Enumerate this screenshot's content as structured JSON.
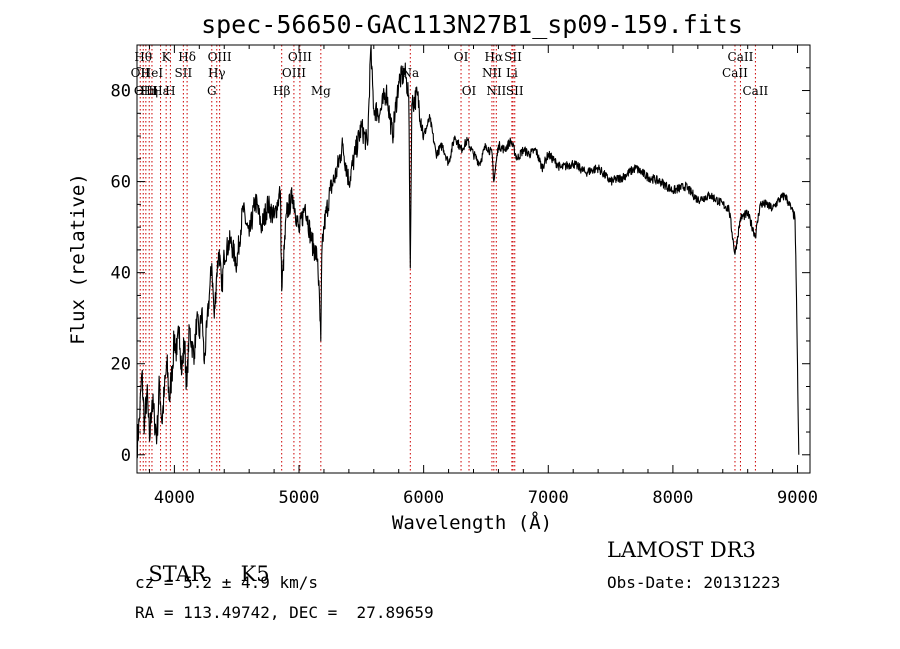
{
  "chart_data": {
    "type": "line",
    "title": "spec-56650-GAC113N27B1_sp09-159.fits",
    "xlabel": "Wavelength (Å)",
    "ylabel": "Flux (relative)",
    "xlim": [
      3700,
      9100
    ],
    "ylim": [
      -4,
      90
    ],
    "xticks": [
      4000,
      5000,
      6000,
      7000,
      8000,
      9000
    ],
    "yticks": [
      0,
      20,
      40,
      60,
      80
    ],
    "series": [
      {
        "name": "spectrum",
        "x": [
          3700,
          3720,
          3740,
          3760,
          3780,
          3800,
          3820,
          3840,
          3860,
          3880,
          3900,
          3920,
          3940,
          3960,
          3980,
          4000,
          4020,
          4040,
          4060,
          4080,
          4100,
          4120,
          4140,
          4160,
          4180,
          4200,
          4220,
          4240,
          4260,
          4280,
          4300,
          4320,
          4340,
          4360,
          4380,
          4400,
          4450,
          4500,
          4550,
          4600,
          4650,
          4700,
          4750,
          4800,
          4850,
          4861,
          4900,
          4950,
          5000,
          5050,
          5100,
          5150,
          5175,
          5183,
          5200,
          5250,
          5300,
          5350,
          5400,
          5450,
          5500,
          5550,
          5575,
          5600,
          5650,
          5700,
          5750,
          5800,
          5850,
          5880,
          5893,
          5905,
          5950,
          6000,
          6050,
          6100,
          6150,
          6200,
          6250,
          6300,
          6350,
          6400,
          6450,
          6500,
          6550,
          6563,
          6600,
          6650,
          6700,
          6750,
          6800,
          6850,
          6900,
          6950,
          7000,
          7100,
          7200,
          7300,
          7400,
          7500,
          7600,
          7700,
          7800,
          7900,
          8000,
          8100,
          8200,
          8300,
          8400,
          8450,
          8498,
          8542,
          8600,
          8662,
          8700,
          8750,
          8800,
          8850,
          8900,
          8950,
          8980,
          9000,
          9005,
          9010
        ],
        "y": [
          2,
          8,
          18,
          6,
          14,
          3,
          12,
          8,
          4,
          16,
          7,
          14,
          20,
          12,
          18,
          26,
          22,
          28,
          18,
          25,
          15,
          28,
          24,
          22,
          30,
          26,
          32,
          20,
          28,
          35,
          42,
          30,
          40,
          45,
          36,
          44,
          47,
          42,
          54,
          48,
          56,
          50,
          55,
          52,
          58,
          36,
          53,
          57,
          49,
          55,
          47,
          43,
          25,
          44,
          50,
          58,
          62,
          68,
          60,
          66,
          72,
          68,
          89,
          76,
          75,
          80,
          70,
          82,
          84,
          79,
          41,
          77,
          79,
          70,
          74,
          66,
          68,
          64,
          70,
          67,
          69,
          66,
          64,
          68,
          66,
          60,
          68,
          67,
          69,
          65,
          67,
          66,
          67,
          63,
          66,
          63,
          64,
          62,
          63,
          60,
          61,
          63,
          61,
          60,
          58,
          59,
          56,
          57,
          55,
          54,
          44,
          52,
          53,
          48,
          55,
          55,
          54,
          56,
          57,
          54,
          52,
          20,
          8,
          0
        ],
        "color": "#000000"
      }
    ],
    "annotations": {
      "line_color": "#cc0000",
      "lines": [
        {
          "wavelength": 3726,
          "label": "OII",
          "row": 2
        },
        {
          "wavelength": 3750,
          "label": "Hθ",
          "row": 1
        },
        {
          "wavelength": 3771,
          "label": "OIII",
          "row": 3
        },
        {
          "wavelength": 3798,
          "label": "Hη",
          "row": 3
        },
        {
          "wavelength": 3820,
          "label": "HeI",
          "row": 2
        },
        {
          "wavelength": 3889,
          "label": "Hε",
          "row": 3
        },
        {
          "wavelength": 3934,
          "label": "K",
          "row": 1
        },
        {
          "wavelength": 3968,
          "label": "H",
          "row": 3
        },
        {
          "wavelength": 4072,
          "label": "SII",
          "row": 2
        },
        {
          "wavelength": 4102,
          "label": "Hδ",
          "row": 1
        },
        {
          "wavelength": 4300,
          "label": "G",
          "row": 3
        },
        {
          "wavelength": 4340,
          "label": "Hγ",
          "row": 2
        },
        {
          "wavelength": 4363,
          "label": "OIII",
          "row": 1
        },
        {
          "wavelength": 4861,
          "label": "Hβ",
          "row": 3
        },
        {
          "wavelength": 4959,
          "label": "OIII",
          "row": 2
        },
        {
          "wavelength": 5007,
          "label": "OIII",
          "row": 1
        },
        {
          "wavelength": 5175,
          "label": "Mg",
          "row": 3
        },
        {
          "wavelength": 5893,
          "label": "Na",
          "row": 2
        },
        {
          "wavelength": 6300,
          "label": "OI",
          "row": 1
        },
        {
          "wavelength": 6364,
          "label": "OI",
          "row": 3
        },
        {
          "wavelength": 6548,
          "label": "NII",
          "row": 2
        },
        {
          "wavelength": 6563,
          "label": "Hα",
          "row": 1
        },
        {
          "wavelength": 6583,
          "label": "NII",
          "row": 3
        },
        {
          "wavelength": 6708,
          "label": "Li",
          "row": 2
        },
        {
          "wavelength": 6717,
          "label": "SII",
          "row": 1
        },
        {
          "wavelength": 6731,
          "label": "SII",
          "row": 3
        },
        {
          "wavelength": 8498,
          "label": "CaII",
          "row": 2
        },
        {
          "wavelength": 8542,
          "label": "CaII",
          "row": 1
        },
        {
          "wavelength": 8662,
          "label": "CaII",
          "row": 3
        }
      ]
    }
  },
  "info": {
    "class": "STAR",
    "subclass": "K5",
    "survey": "LAMOST DR3",
    "redshift": "cz = 5.2 ± 4.9 km/s",
    "obs_date": "Obs-Date: 20131223",
    "coords": "RA = 113.49742, DEC =  27.89659"
  }
}
